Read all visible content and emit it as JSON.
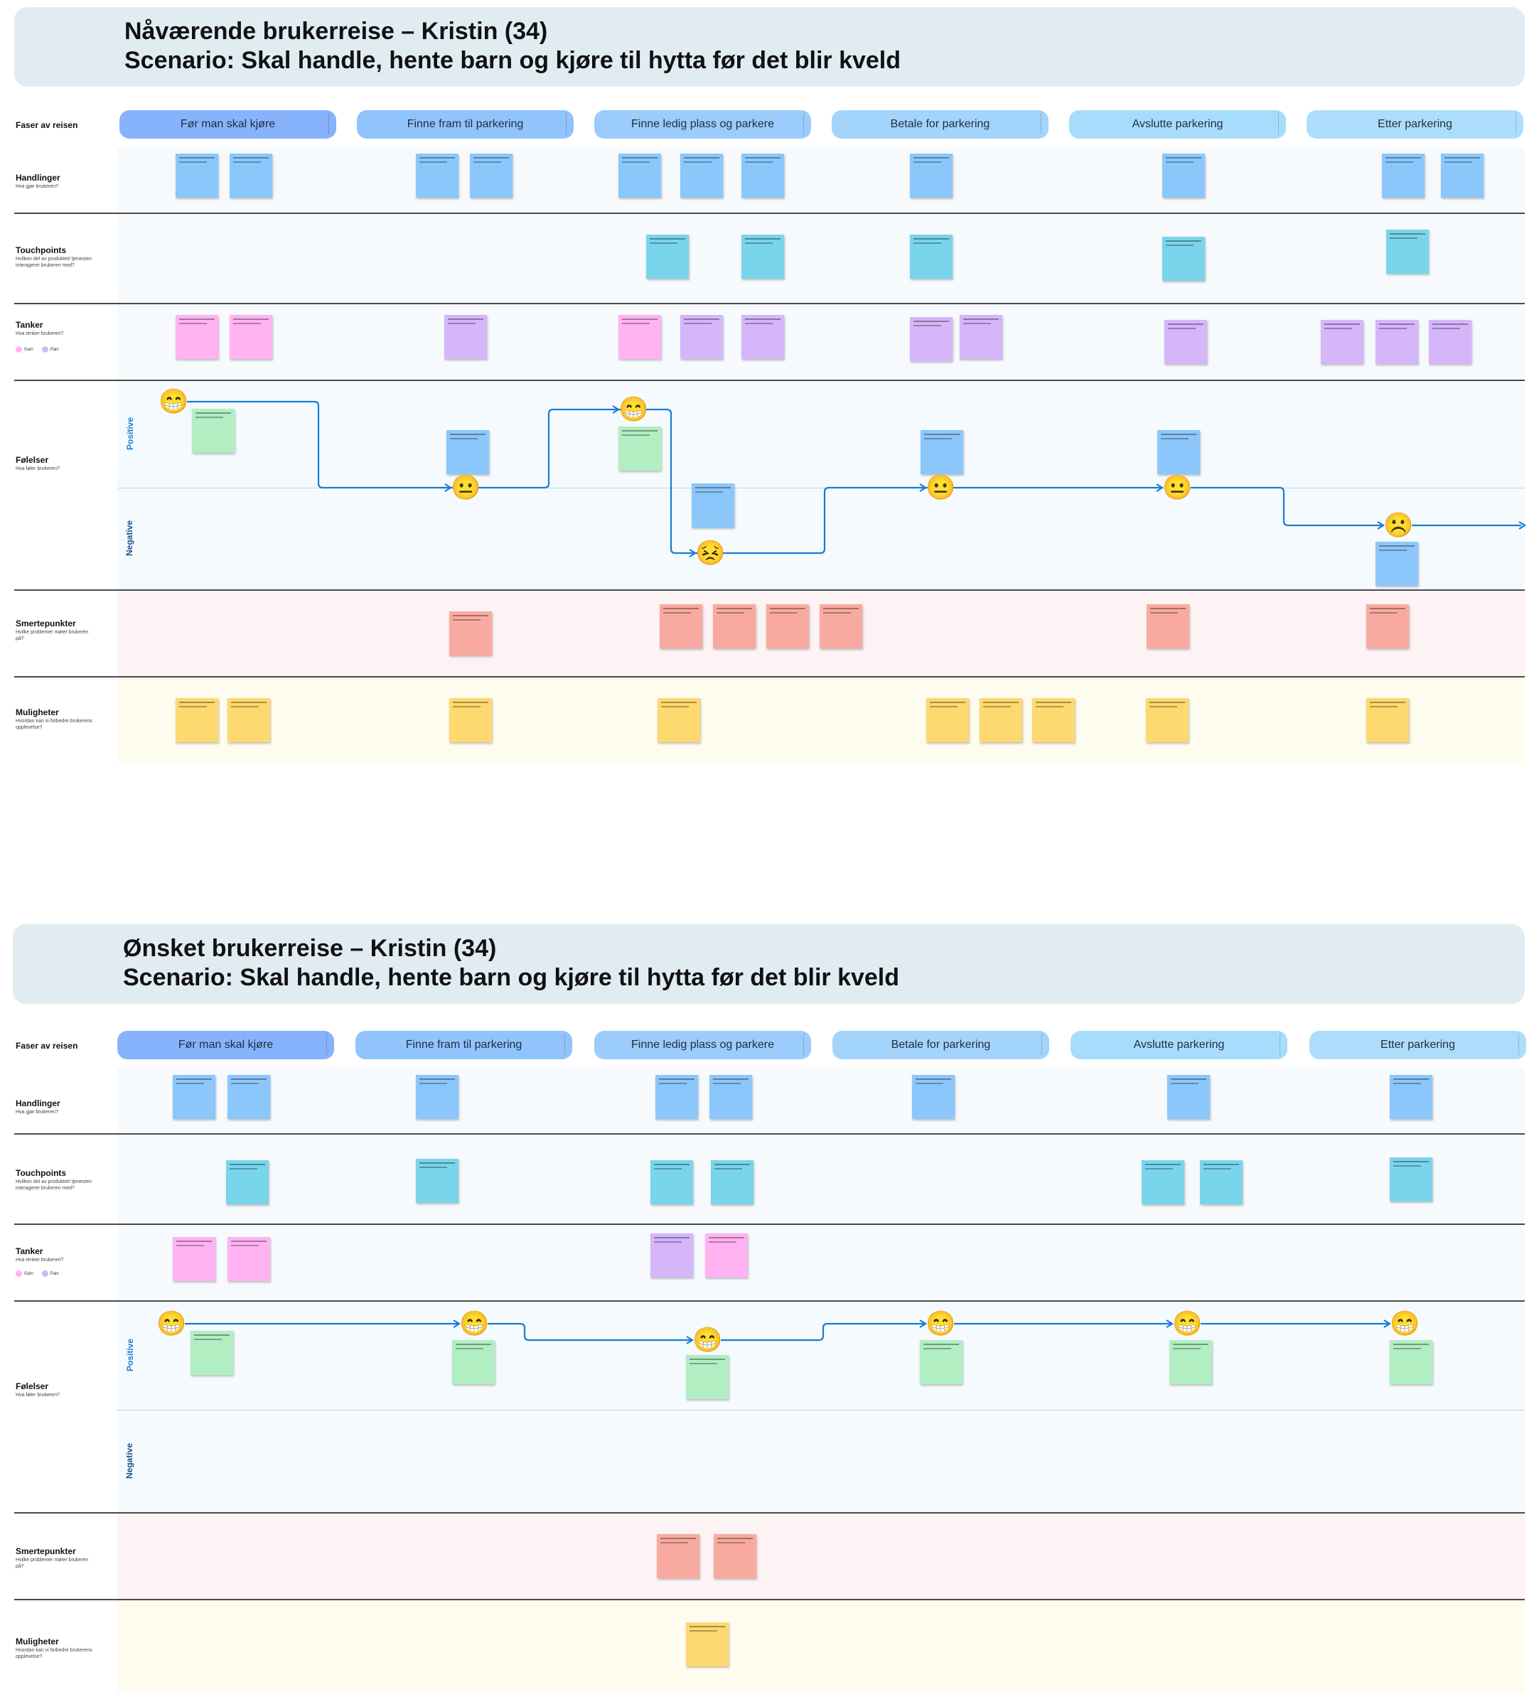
{
  "colors": {
    "header_bg": "#e1ecf2",
    "phases": [
      "#86b3fb",
      "#91c3fc",
      "#9bccfb",
      "#a3d4fb",
      "#a8dcfc",
      "#acdefc"
    ],
    "lane_handlinger": "#f6fafd",
    "lane_touch": "#f6fafd",
    "lane_tanker": "#f6fafd",
    "lane_folelser": "#f4fafd",
    "lane_smerte": "#fdf2f4",
    "lane_muligheter": "#fefbef",
    "sticky_blue": "#8cc7fb",
    "sticky_cyan": "#79d5ec",
    "sticky_pink": "#ffb3f0",
    "sticky_purple": "#d5b6fb",
    "sticky_green": "#b1eec2",
    "sticky_red": "#f9aaa0",
    "sticky_yellow": "#fed96f",
    "curve": "#1a7cd1",
    "positive": "#1a7cd1",
    "negative": "#1c4f8a"
  },
  "icons": [
    "grinning-face-icon",
    "neutral-face-icon",
    "persevering-face-icon",
    "frowning-face-icon"
  ],
  "maps": [
    {
      "title": "Nåværende brukerreise – Kristin (34)",
      "scenario": "Scenario: Skal handle, hente barn og kjøre til hytta før det blir kveld",
      "phases_label": "Faser av reisen",
      "phases": [
        "Før man skal kjøre",
        "Finne fram til parkering",
        "Finne ledig plass og parkere",
        "Betale for parkering",
        "Avslutte parkering",
        "Etter parkering"
      ],
      "rows": {
        "handlinger": {
          "title": "Handlinger",
          "sub": "Hva gjør brukeren?"
        },
        "touchpoints": {
          "title": "Touchpoints",
          "sub": "Hvilken del av produktet/ tjenesten interagerer brukeren med?"
        },
        "tanker": {
          "title": "Tanker",
          "sub": "Hva tenker brukeren?"
        },
        "folelser": {
          "title": "Følelser",
          "sub": "Hva føler brukeren?"
        },
        "smerte": {
          "title": "Smertepunkter",
          "sub": "Hvilke problemer møter brukeren på?"
        },
        "muligheter": {
          "title": "Muligheter",
          "sub": "Hvordan kan vi forbedre brukerens opplevelse?"
        }
      },
      "legend": {
        "gain": "Gain",
        "pain": "Pain"
      },
      "valence": {
        "positive": "Positive",
        "negative": "Negative"
      },
      "emotion_curve": [
        "grinning",
        "neutral",
        "grinning",
        "persevering",
        "neutral",
        "neutral",
        "frowning"
      ]
    },
    {
      "title": "Ønsket brukerreise – Kristin (34)",
      "scenario": "Scenario: Skal handle, hente barn og kjøre til hytta før det blir kveld",
      "phases_label": "Faser av reisen",
      "phases": [
        "Før man skal kjøre",
        "Finne fram til parkering",
        "Finne ledig plass og parkere",
        "Betale for parkering",
        "Avslutte parkering",
        "Etter parkering"
      ],
      "rows": {
        "handlinger": {
          "title": "Handlinger",
          "sub": "Hva gjør brukeren?"
        },
        "touchpoints": {
          "title": "Touchpoints",
          "sub": "Hvilken del av produktet/ tjenesten interagerer brukeren med?"
        },
        "tanker": {
          "title": "Tanker",
          "sub": "Hva tenker brukeren?"
        },
        "folelser": {
          "title": "Følelser",
          "sub": "Hva føler brukeren?"
        },
        "smerte": {
          "title": "Smertepunkter",
          "sub": "Hvilke problemer møter brukeren på?"
        },
        "muligheter": {
          "title": "Muligheter",
          "sub": "Hvordan kan vi forbedre brukerens opplevelse?"
        }
      },
      "legend": {
        "gain": "Gain",
        "pain": "Pain"
      },
      "valence": {
        "positive": "Positive",
        "negative": "Negative"
      },
      "emotion_curve": [
        "grinning",
        "grinning",
        "grinning",
        "grinning",
        "grinning",
        "grinning"
      ]
    }
  ]
}
